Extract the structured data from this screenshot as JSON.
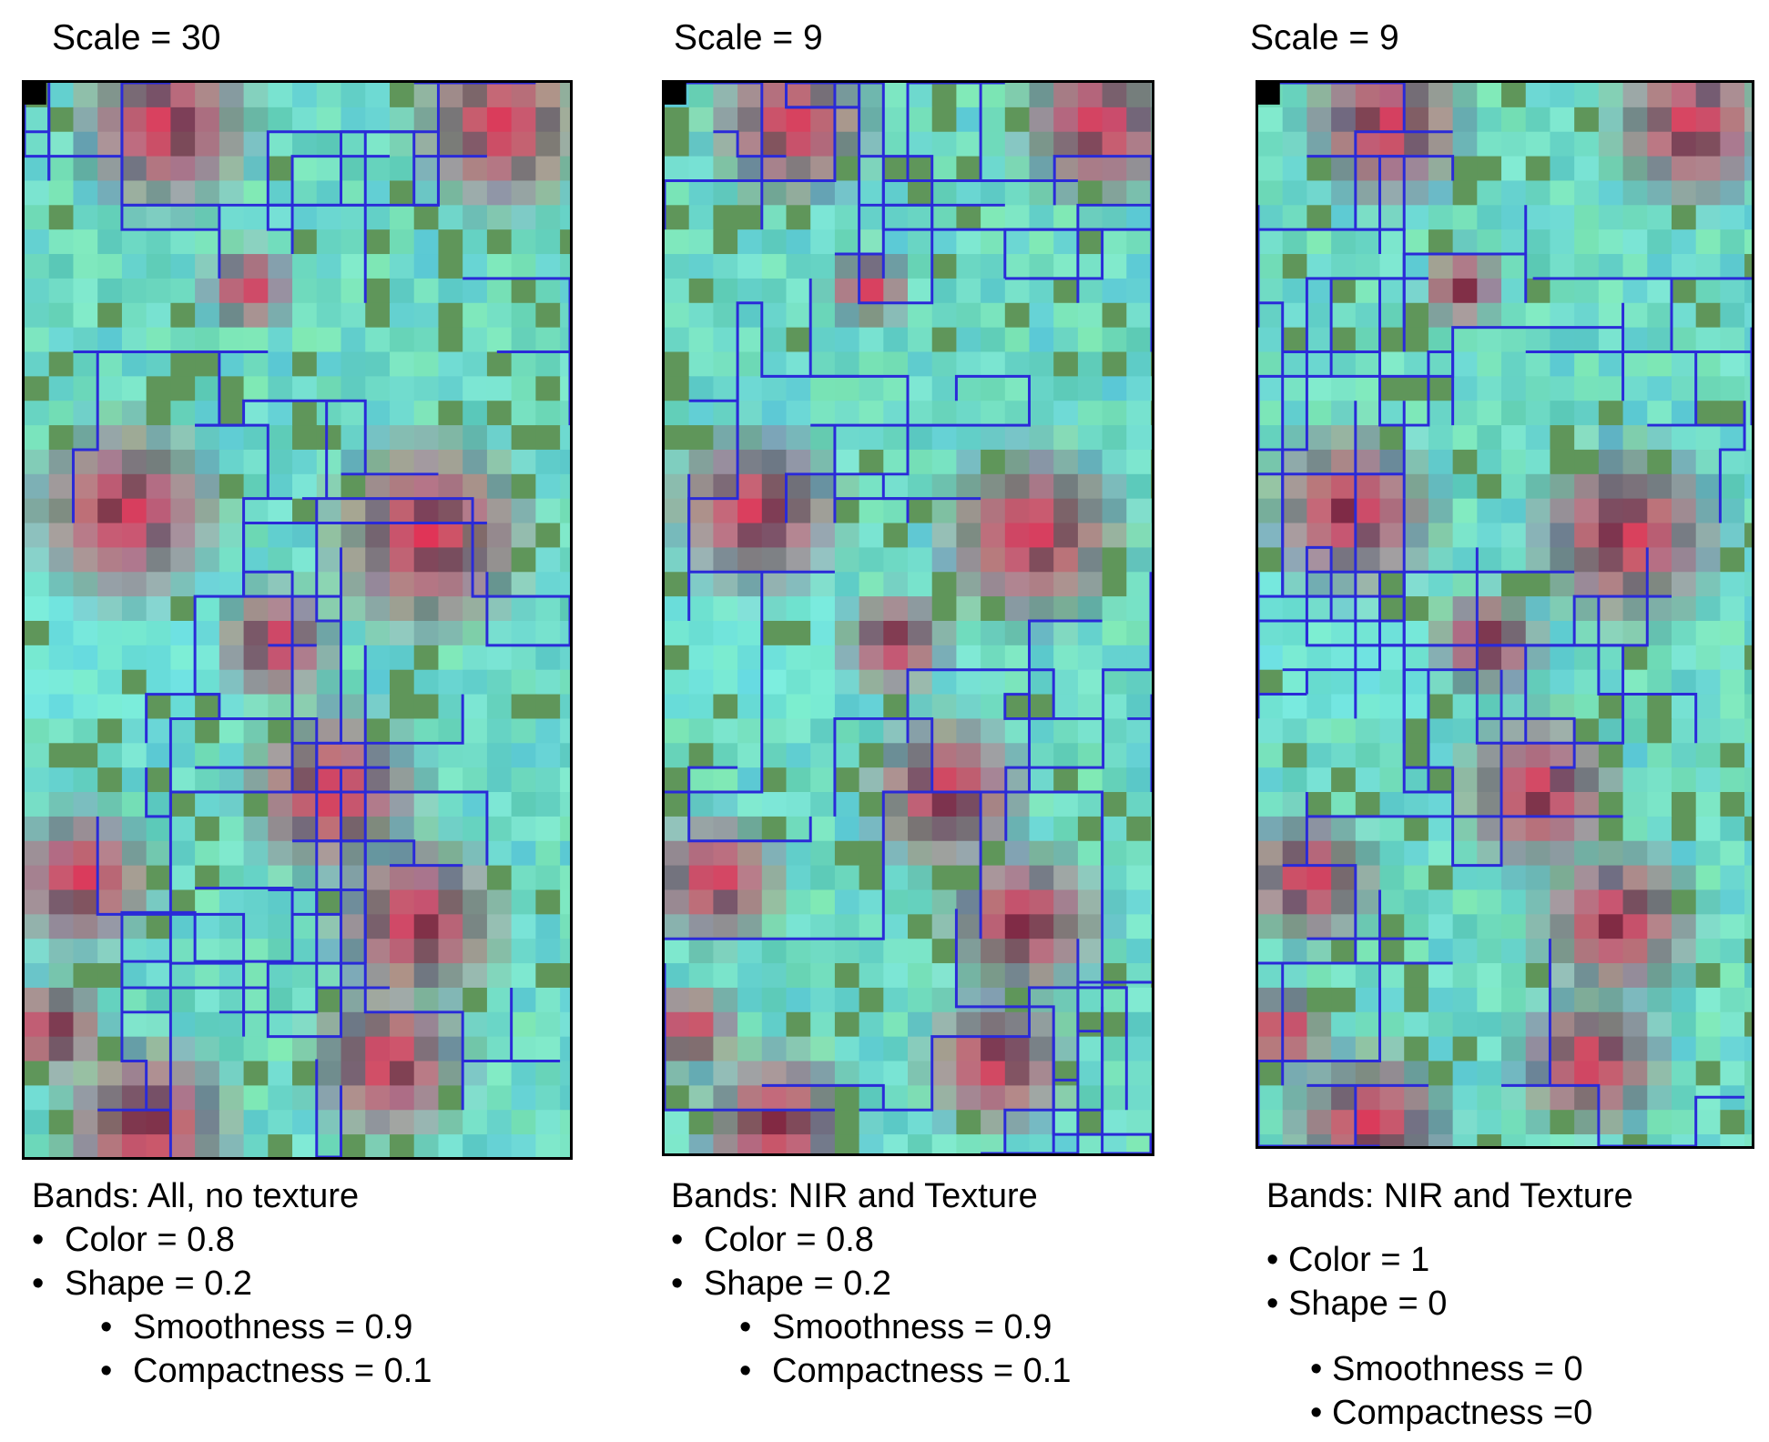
{
  "panels": [
    {
      "scale_label": "Scale = 30",
      "bands": "Bands: All, no texture",
      "params": [
        {
          "text": "Color = 0.8",
          "level": 1
        },
        {
          "text": "Shape = 0.2",
          "level": 1
        },
        {
          "text": "Smoothness = 0.9",
          "level": 2
        },
        {
          "text": "Compactness = 0.1",
          "level": 2
        }
      ]
    },
    {
      "scale_label": "Scale = 9",
      "bands": "Bands: NIR and Texture",
      "params": [
        {
          "text": "Color = 0.8",
          "level": 1
        },
        {
          "text": "Shape = 0.2",
          "level": 1
        },
        {
          "text": "Smoothness = 0.9",
          "level": 2
        },
        {
          "text": "Compactness = 0.1",
          "level": 2
        }
      ]
    },
    {
      "scale_label": "Scale = 9",
      "bands": "Bands: NIR and Texture",
      "params": [
        {
          "text": "Color = 1",
          "level": 1
        },
        {
          "text": "Shape = 0",
          "level": 1
        },
        {
          "text": "Smoothness = 0",
          "level": 2
        },
        {
          "text": "Compactness =0",
          "level": 2
        }
      ]
    }
  ],
  "colors": {
    "segment_outline": "#2a2ad8",
    "canopy_red": "#e0305a",
    "ground_cyan": "#6fe0c8",
    "frame": "#000000"
  }
}
